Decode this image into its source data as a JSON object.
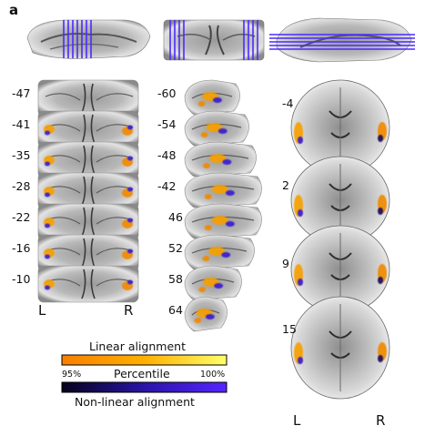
{
  "panel_label": "a",
  "coronal": {
    "slices": [
      "-47",
      "-41",
      "-35",
      "-28",
      "-22",
      "-16",
      "-10"
    ],
    "left": "L",
    "right": "R"
  },
  "sagittal": {
    "slices": [
      "-60",
      "-54",
      "-48",
      "-42",
      "46",
      "52",
      "58",
      "64"
    ]
  },
  "axial": {
    "slices": [
      "-4",
      "2",
      "9",
      "15"
    ],
    "left": "L",
    "right": "R"
  },
  "colorbars": {
    "linear_title": "Linear alignment",
    "nonlinear_title": "Non-linear alignment",
    "percentile_label": "Percentile",
    "tick_min": "95%",
    "tick_max": "100%",
    "linear_colors": [
      "#f77f00",
      "#ffb000",
      "#ffff6a"
    ],
    "nonlinear_colors": [
      "#05021a",
      "#2a14a6",
      "#5525ff"
    ]
  },
  "colors": {
    "guide_lines": "#4a2bff",
    "brain_dark": "#1c1c1c",
    "brain_light": "#dadada"
  }
}
